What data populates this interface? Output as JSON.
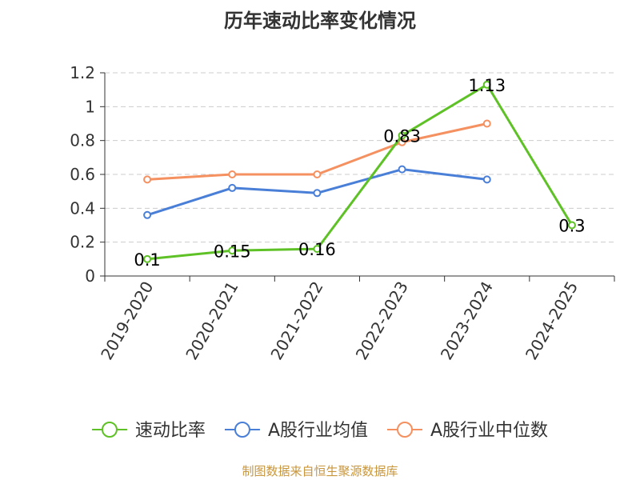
{
  "chart_data": {
    "type": "line",
    "title": "历年速动比率变化情况",
    "categories": [
      "2019-2020",
      "2020-2021",
      "2021-2022",
      "2022-2023",
      "2023-2024",
      "2024-2025"
    ],
    "ylim": [
      0,
      1.2
    ],
    "yticks": [
      "0",
      "0.2",
      "0.4",
      "0.6",
      "0.8",
      "1",
      "1.2"
    ],
    "grid": true,
    "legend_position": "bottom",
    "series": [
      {
        "name": "速动比率",
        "color": "#5ec126",
        "values": [
          0.1,
          0.15,
          0.16,
          0.83,
          1.13,
          0.3
        ],
        "labels": [
          "0.1",
          "0.15",
          "0.16",
          "0.83",
          "1.13",
          "0.3"
        ]
      },
      {
        "name": "A股行业均值",
        "color": "#4a7fd8",
        "values": [
          0.36,
          0.52,
          0.49,
          0.63,
          0.57,
          null
        ]
      },
      {
        "name": "A股行业中位数",
        "color": "#f59060",
        "values": [
          0.57,
          0.6,
          0.6,
          0.79,
          0.9,
          null
        ]
      }
    ]
  },
  "source": "制图数据来自恒生聚源数据库"
}
